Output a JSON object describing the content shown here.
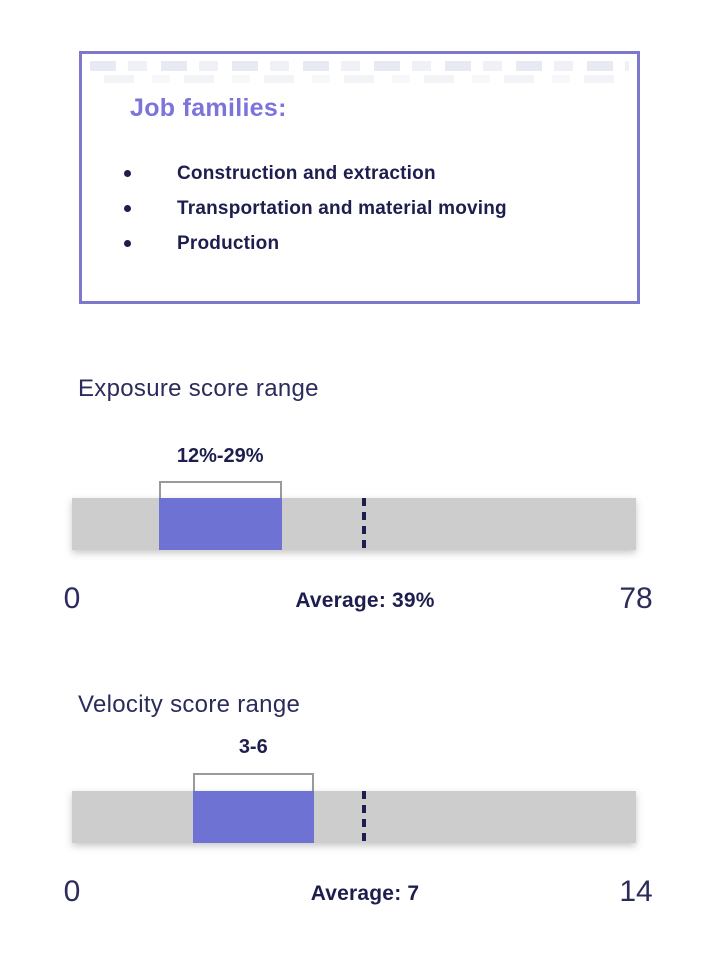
{
  "job_families": {
    "heading": "Job families:",
    "items": [
      "Construction and extraction",
      "Transportation and material moving",
      "Production"
    ]
  },
  "chart_data": [
    {
      "type": "range-bar",
      "title": "Exposure score range",
      "range_label": "12%-29%",
      "range": [
        12,
        29
      ],
      "average": 39,
      "average_label": "Average: 39%",
      "axis_min_label": "0",
      "axis_max_label": "78",
      "xlim": [
        0,
        78
      ],
      "grid": false
    },
    {
      "type": "range-bar",
      "title": "Velocity score range",
      "range_label": "3-6",
      "range": [
        3,
        6
      ],
      "average": 7,
      "average_label": "Average: 7",
      "axis_min_label": "0",
      "axis_max_label": "14",
      "xlim": [
        0,
        14
      ],
      "grid": false
    }
  ],
  "colors": {
    "accent_purple": "#6E72D2",
    "heading_purple": "#7C73DB",
    "box_border_purple": "#7C79CD",
    "navy_text": "#1E1E4E",
    "title_navy": "#2B2B5C",
    "track_gray": "#CDCDCD",
    "bracket_gray": "#9A9A9A"
  }
}
